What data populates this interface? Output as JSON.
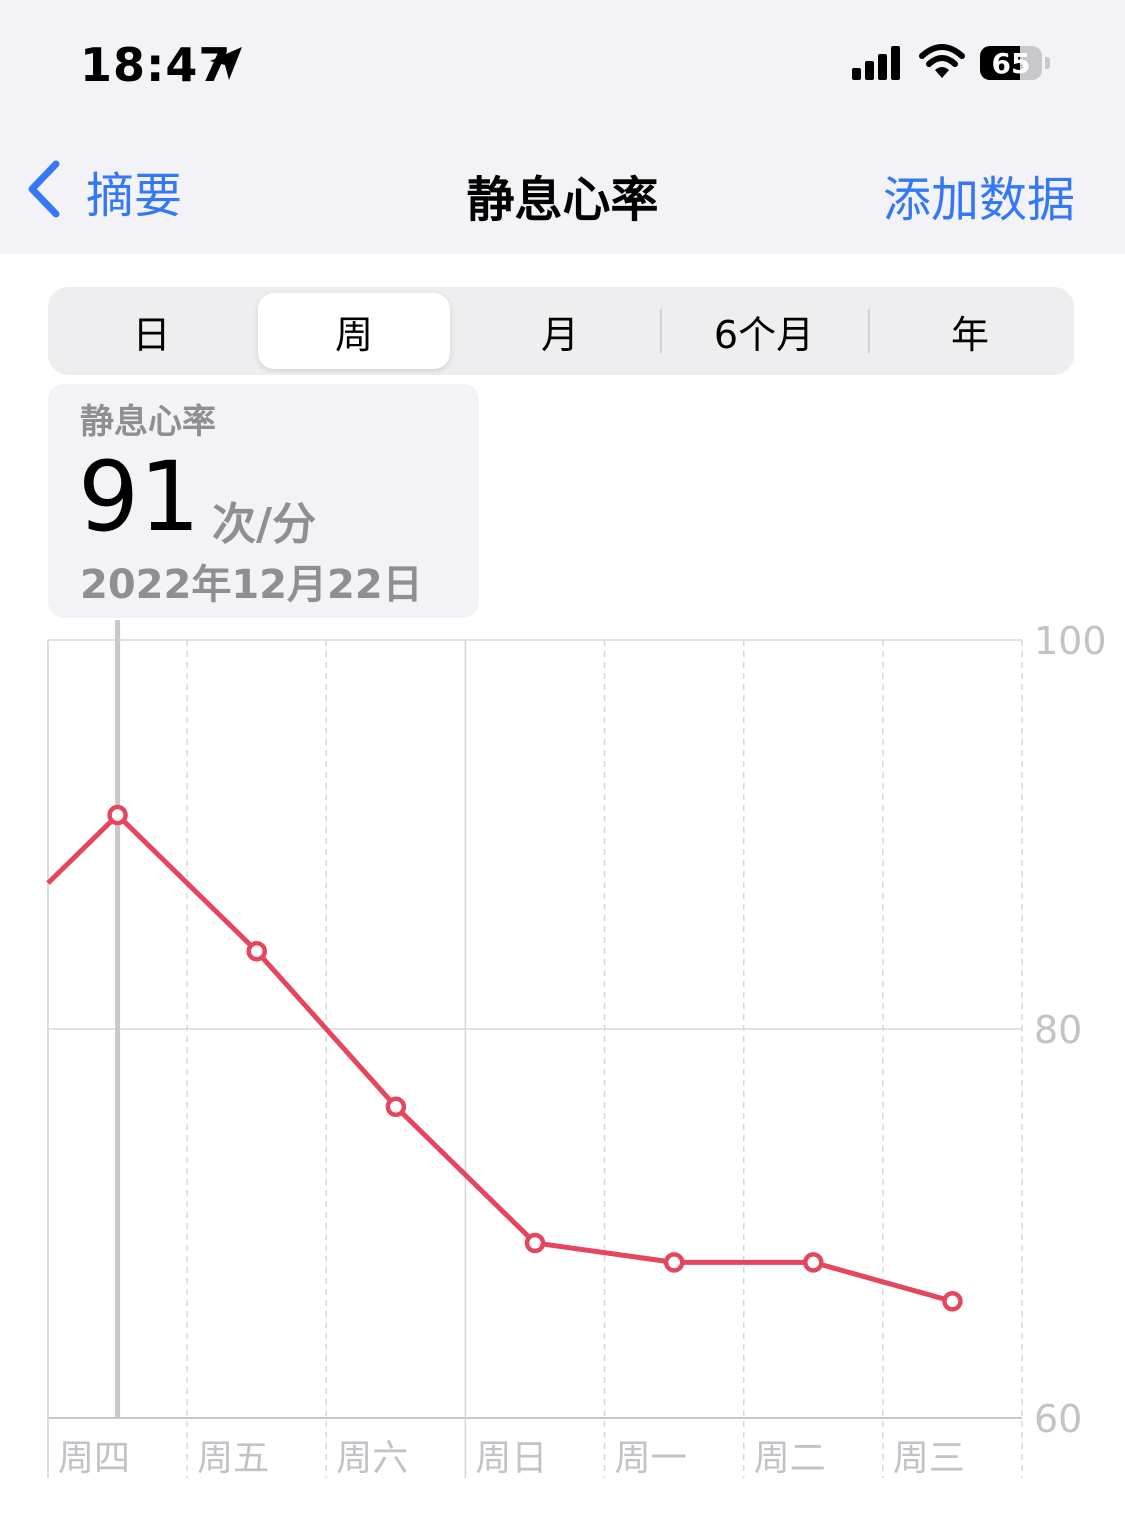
{
  "status_bar": {
    "time": "18:47",
    "battery": "65",
    "battery_level": 0.65,
    "icons": [
      "location-arrow-icon",
      "cellular-signal-icon",
      "wifi-icon",
      "battery-icon"
    ]
  },
  "nav": {
    "back_label": "摘要",
    "title": "静息心率",
    "action_label": "添加数据",
    "accent_color": "#3478f6"
  },
  "segments": {
    "items": [
      "日",
      "周",
      "月",
      "6个月",
      "年"
    ],
    "selected": "周"
  },
  "callout": {
    "label": "静息心率",
    "value": "91",
    "unit": "次/分",
    "date": "2022年12月22日"
  },
  "chart_data": {
    "type": "line",
    "categories": [
      "周四",
      "周五",
      "周六",
      "周日",
      "周一",
      "周二",
      "周三"
    ],
    "series": [
      {
        "values": [
          91,
          84,
          76,
          69,
          68,
          68,
          66
        ]
      }
    ],
    "leading_value": 87.5,
    "yticks": [
      100,
      80,
      60
    ],
    "ylim": [
      60,
      100
    ],
    "selected_category": "周四",
    "line_color": "#e5465e",
    "grid": true
  }
}
